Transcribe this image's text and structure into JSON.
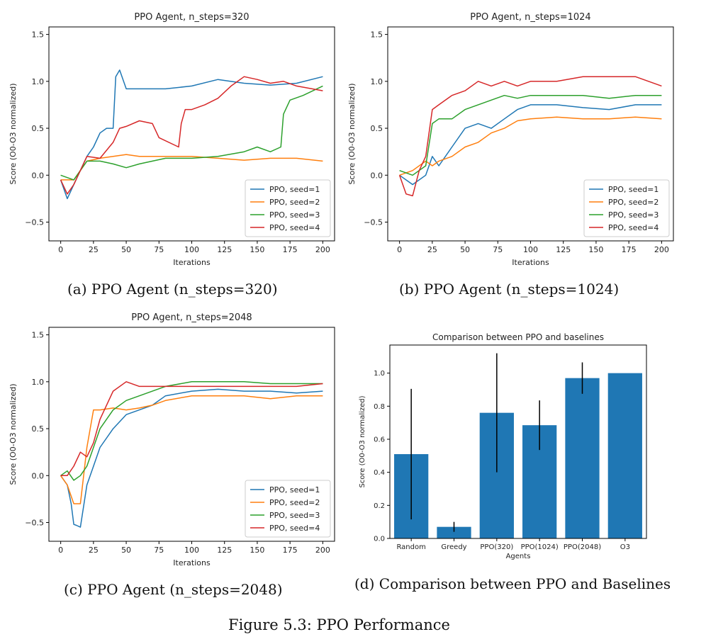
{
  "figure": {
    "caption": "Figure 5.3: PPO Performance"
  },
  "captions": [
    "(a) PPO Agent (n_steps=320)",
    "(b) PPO Agent (n_steps=1024)",
    "(c) PPO Agent (n_steps=2048)",
    "(d) Comparison between PPO and Baselines"
  ],
  "colors": {
    "seed1": "#1f77b4",
    "seed2": "#ff7f0e",
    "seed3": "#2ca02c",
    "seed4": "#d62728",
    "bar": "#1f77b4",
    "errorbar": "#000000"
  },
  "chart_data": [
    {
      "type": "line",
      "title": "PPO Agent, n_steps=320",
      "xlabel": "Iterations",
      "ylabel": "Score (O0-O3 normalized)",
      "xlim": [
        -9,
        209
      ],
      "ylim": [
        -0.7,
        1.58
      ],
      "xticks": [
        0,
        25,
        50,
        75,
        100,
        125,
        150,
        175,
        200
      ],
      "yticks": [
        -0.5,
        0.0,
        0.5,
        1.0,
        1.5
      ],
      "ytick_labels": [
        "−0.5",
        "0.0",
        "0.5",
        "1.0",
        "1.5"
      ],
      "legend_position": "lower-right",
      "grid": false,
      "series": [
        {
          "name": "PPO, seed=1",
          "color": "#1f77b4",
          "x": [
            0,
            5,
            10,
            20,
            25,
            30,
            35,
            40,
            42,
            45,
            50,
            60,
            80,
            100,
            120,
            140,
            160,
            180,
            200
          ],
          "y": [
            -0.05,
            -0.25,
            -0.1,
            0.2,
            0.3,
            0.45,
            0.5,
            0.5,
            1.05,
            1.12,
            0.92,
            0.92,
            0.92,
            0.95,
            1.02,
            0.98,
            0.96,
            0.98,
            1.05
          ]
        },
        {
          "name": "PPO, seed=2",
          "color": "#ff7f0e",
          "x": [
            0,
            10,
            20,
            30,
            40,
            50,
            60,
            80,
            100,
            120,
            140,
            160,
            180,
            200
          ],
          "y": [
            -0.05,
            -0.05,
            0.15,
            0.18,
            0.2,
            0.22,
            0.2,
            0.2,
            0.2,
            0.18,
            0.16,
            0.18,
            0.18,
            0.15
          ]
        },
        {
          "name": "PPO, seed=3",
          "color": "#2ca02c",
          "x": [
            0,
            10,
            20,
            30,
            40,
            50,
            60,
            80,
            100,
            120,
            140,
            150,
            160,
            168,
            170,
            175,
            185,
            200
          ],
          "y": [
            0.0,
            -0.05,
            0.15,
            0.15,
            0.12,
            0.08,
            0.12,
            0.18,
            0.18,
            0.2,
            0.25,
            0.3,
            0.25,
            0.3,
            0.65,
            0.8,
            0.85,
            0.95
          ]
        },
        {
          "name": "PPO, seed=4",
          "color": "#d62728",
          "x": [
            0,
            5,
            10,
            20,
            30,
            40,
            45,
            50,
            60,
            70,
            75,
            90,
            92,
            95,
            100,
            110,
            120,
            130,
            140,
            150,
            160,
            170,
            180,
            200
          ],
          "y": [
            -0.05,
            -0.2,
            -0.1,
            0.2,
            0.18,
            0.35,
            0.5,
            0.52,
            0.58,
            0.55,
            0.4,
            0.3,
            0.55,
            0.7,
            0.7,
            0.75,
            0.82,
            0.95,
            1.05,
            1.02,
            0.98,
            1.0,
            0.95,
            0.9
          ]
        }
      ]
    },
    {
      "type": "line",
      "title": "PPO Agent, n_steps=1024",
      "xlabel": "Iterations",
      "ylabel": "Score (O0-O3 normalized)",
      "xlim": [
        -9,
        209
      ],
      "ylim": [
        -0.7,
        1.58
      ],
      "xticks": [
        0,
        25,
        50,
        75,
        100,
        125,
        150,
        175,
        200
      ],
      "yticks": [
        -0.5,
        0.0,
        0.5,
        1.0,
        1.5
      ],
      "ytick_labels": [
        "−0.5",
        "0.0",
        "0.5",
        "1.0",
        "1.5"
      ],
      "legend_position": "lower-right",
      "grid": false,
      "series": [
        {
          "name": "PPO, seed=1",
          "color": "#1f77b4",
          "x": [
            0,
            10,
            20,
            25,
            30,
            40,
            50,
            60,
            70,
            80,
            90,
            100,
            120,
            140,
            160,
            180,
            200
          ],
          "y": [
            0.0,
            -0.1,
            0.0,
            0.2,
            0.1,
            0.3,
            0.5,
            0.55,
            0.5,
            0.6,
            0.7,
            0.75,
            0.75,
            0.72,
            0.7,
            0.75,
            0.75
          ]
        },
        {
          "name": "PPO, seed=2",
          "color": "#ff7f0e",
          "x": [
            0,
            10,
            20,
            25,
            30,
            40,
            50,
            60,
            70,
            80,
            90,
            100,
            120,
            140,
            160,
            180,
            200
          ],
          "y": [
            0.0,
            0.05,
            0.15,
            0.1,
            0.15,
            0.2,
            0.3,
            0.35,
            0.45,
            0.5,
            0.58,
            0.6,
            0.62,
            0.6,
            0.6,
            0.62,
            0.6
          ]
        },
        {
          "name": "PPO, seed=3",
          "color": "#2ca02c",
          "x": [
            0,
            10,
            20,
            25,
            30,
            40,
            50,
            60,
            70,
            80,
            90,
            100,
            120,
            140,
            160,
            180,
            200
          ],
          "y": [
            0.05,
            0.0,
            0.1,
            0.55,
            0.6,
            0.6,
            0.7,
            0.75,
            0.8,
            0.85,
            0.82,
            0.85,
            0.85,
            0.85,
            0.82,
            0.85,
            0.85
          ]
        },
        {
          "name": "PPO, seed=4",
          "color": "#d62728",
          "x": [
            0,
            5,
            10,
            15,
            20,
            25,
            30,
            40,
            50,
            60,
            70,
            80,
            90,
            100,
            120,
            140,
            160,
            180,
            200
          ],
          "y": [
            0.0,
            -0.2,
            -0.22,
            0.05,
            0.2,
            0.7,
            0.75,
            0.85,
            0.9,
            1.0,
            0.95,
            1.0,
            0.95,
            1.0,
            1.0,
            1.05,
            1.05,
            1.05,
            0.95
          ]
        }
      ]
    },
    {
      "type": "line",
      "title": "PPO Agent, n_steps=2048",
      "xlabel": "Iterations",
      "ylabel": "Score (O0-O3 normalized)",
      "xlim": [
        -9,
        209
      ],
      "ylim": [
        -0.7,
        1.58
      ],
      "xticks": [
        0,
        25,
        50,
        75,
        100,
        125,
        150,
        175,
        200
      ],
      "yticks": [
        -0.5,
        0.0,
        0.5,
        1.0,
        1.5
      ],
      "ytick_labels": [
        "−0.5",
        "0.0",
        "0.5",
        "1.0",
        "1.5"
      ],
      "legend_position": "lower-right",
      "grid": false,
      "series": [
        {
          "name": "PPO, seed=1",
          "color": "#1f77b4",
          "x": [
            0,
            5,
            8,
            10,
            12,
            15,
            20,
            25,
            30,
            40,
            50,
            60,
            70,
            80,
            100,
            120,
            140,
            160,
            180,
            200
          ],
          "y": [
            0.0,
            -0.1,
            -0.3,
            -0.52,
            -0.53,
            -0.55,
            -0.1,
            0.1,
            0.3,
            0.5,
            0.65,
            0.7,
            0.75,
            0.85,
            0.9,
            0.92,
            0.9,
            0.9,
            0.88,
            0.9
          ]
        },
        {
          "name": "PPO, seed=2",
          "color": "#ff7f0e",
          "x": [
            0,
            5,
            10,
            15,
            20,
            25,
            30,
            40,
            50,
            60,
            70,
            80,
            100,
            120,
            140,
            160,
            180,
            200
          ],
          "y": [
            0.0,
            -0.1,
            -0.3,
            -0.3,
            0.3,
            0.7,
            0.7,
            0.72,
            0.7,
            0.72,
            0.75,
            0.8,
            0.85,
            0.85,
            0.85,
            0.82,
            0.85,
            0.85
          ]
        },
        {
          "name": "PPO, seed=3",
          "color": "#2ca02c",
          "x": [
            0,
            5,
            10,
            15,
            20,
            25,
            30,
            40,
            50,
            60,
            70,
            80,
            100,
            120,
            140,
            160,
            180,
            200
          ],
          "y": [
            0.0,
            0.05,
            -0.05,
            0.0,
            0.1,
            0.3,
            0.5,
            0.7,
            0.8,
            0.85,
            0.9,
            0.95,
            1.0,
            1.0,
            1.0,
            0.98,
            0.98,
            0.98
          ]
        },
        {
          "name": "PPO, seed=4",
          "color": "#d62728",
          "x": [
            0,
            5,
            10,
            15,
            20,
            25,
            30,
            40,
            50,
            60,
            70,
            80,
            100,
            120,
            140,
            160,
            180,
            200
          ],
          "y": [
            0.0,
            0.0,
            0.1,
            0.25,
            0.2,
            0.35,
            0.6,
            0.9,
            1.0,
            0.95,
            0.95,
            0.95,
            0.95,
            0.95,
            0.95,
            0.95,
            0.95,
            0.98
          ]
        }
      ]
    },
    {
      "type": "bar",
      "title": "Comparison between PPO and baselines",
      "xlabel": "Agents",
      "ylabel": "Score (O0-O3 normalized)",
      "categories": [
        "Random",
        "Greedy",
        "PPO(320)",
        "PPO(1024)",
        "PPO(2048)",
        "O3"
      ],
      "values": [
        0.51,
        0.07,
        0.76,
        0.685,
        0.97,
        1.0
      ],
      "errors": [
        0.395,
        0.03,
        0.36,
        0.15,
        0.095,
        0
      ],
      "ylim": [
        0,
        1.17
      ],
      "yticks": [
        0.0,
        0.2,
        0.4,
        0.6,
        0.8,
        1.0
      ],
      "ytick_labels": [
        "0.0",
        "0.2",
        "0.4",
        "0.6",
        "0.8",
        "1.0"
      ],
      "grid": false
    }
  ]
}
